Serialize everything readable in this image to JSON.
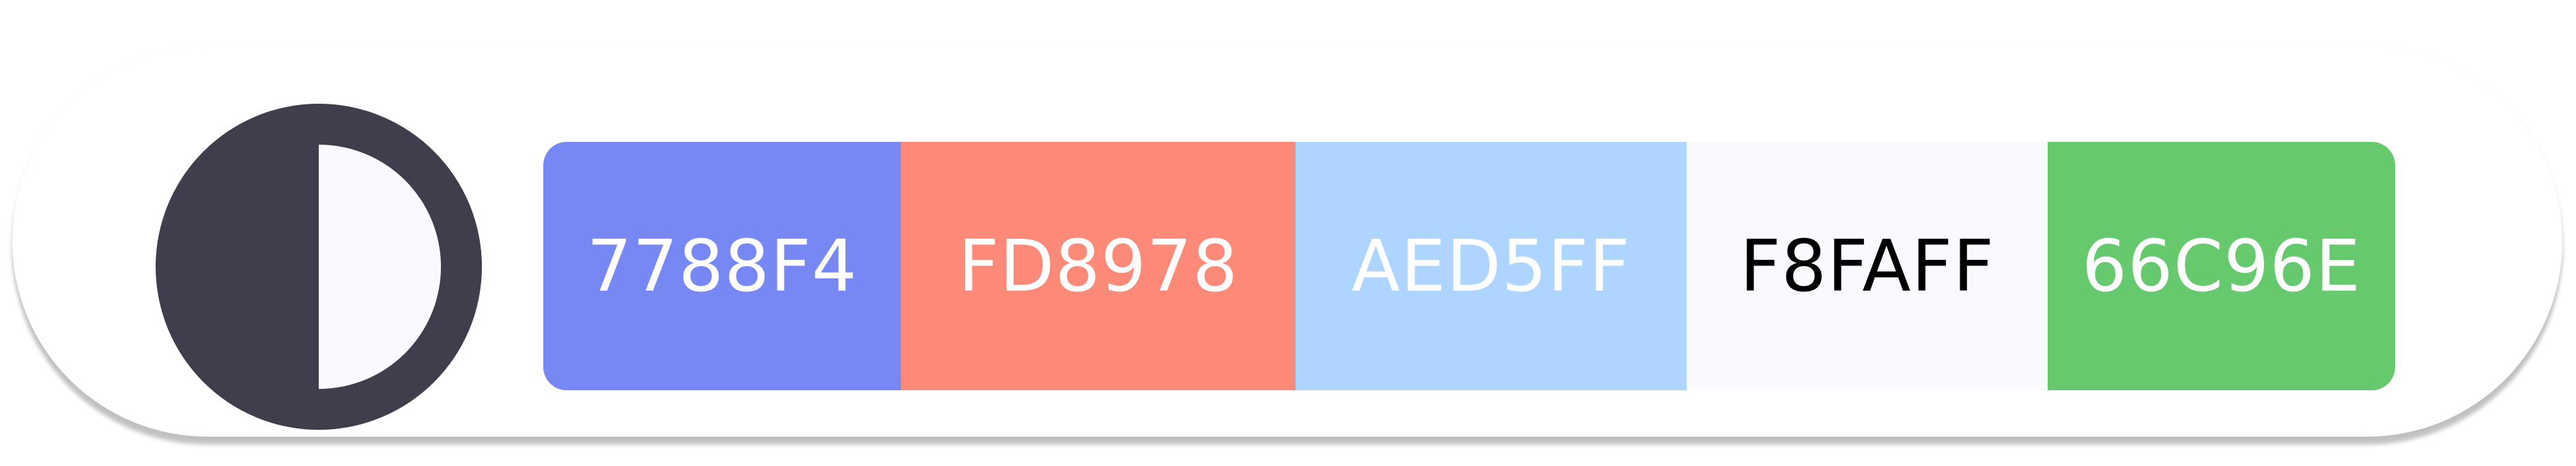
{
  "theme_toggle": {
    "icon": "contrast-icon",
    "dark_color": "#3F3E4D",
    "light_color": "#F8FAFF"
  },
  "palette": {
    "swatches": [
      {
        "label": "7788F4",
        "color": "#7788F4",
        "text_color": "#FFFFFF"
      },
      {
        "label": "FD8978",
        "color": "#FD8978",
        "text_color": "#FFFFFF"
      },
      {
        "label": "AED5FF",
        "color": "#AED5FF",
        "text_color": "#FFFFFF"
      },
      {
        "label": "F8FAFF",
        "color": "#F8FAFF",
        "text_color": "#000000"
      },
      {
        "label": "66C96E",
        "color": "#66C96E",
        "text_color": "#FFFFFF"
      }
    ]
  }
}
